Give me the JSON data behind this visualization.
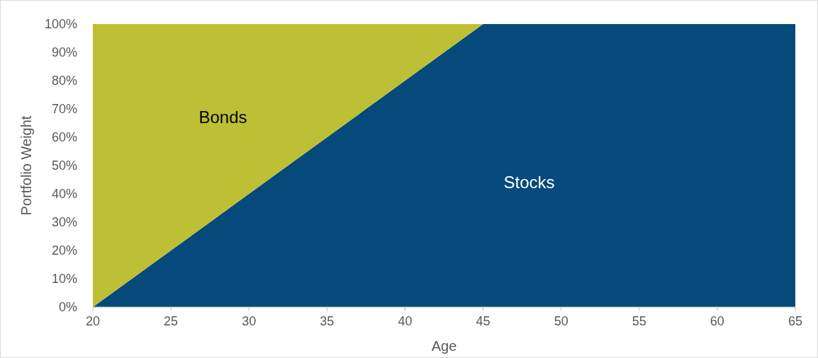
{
  "chart_data": {
    "type": "area",
    "stacked": true,
    "xlabel": "Age",
    "ylabel": "Portfolio Weight",
    "x": [
      20,
      45,
      65
    ],
    "series": [
      {
        "name": "Stocks",
        "color": "#054a7a",
        "values": [
          0,
          100,
          100
        ]
      },
      {
        "name": "Bonds",
        "color": "#bdbf35",
        "x": [
          20,
          45
        ],
        "values": [
          100,
          0
        ]
      }
    ],
    "xlim": [
      20,
      65
    ],
    "xticks": [
      20,
      25,
      30,
      35,
      40,
      45,
      50,
      55,
      60,
      65
    ],
    "ylim": [
      0,
      100
    ],
    "yticks": [
      {
        "value": 0,
        "label": "0%"
      },
      {
        "value": 10,
        "label": "10%"
      },
      {
        "value": 20,
        "label": "20%"
      },
      {
        "value": 30,
        "label": "30%"
      },
      {
        "value": 40,
        "label": "40%"
      },
      {
        "value": 50,
        "label": "50%"
      },
      {
        "value": 60,
        "label": "60%"
      },
      {
        "value": 70,
        "label": "70%"
      },
      {
        "value": 80,
        "label": "80%"
      },
      {
        "value": 90,
        "label": "90%"
      },
      {
        "value": 100,
        "label": "100%"
      }
    ],
    "grid": false
  }
}
